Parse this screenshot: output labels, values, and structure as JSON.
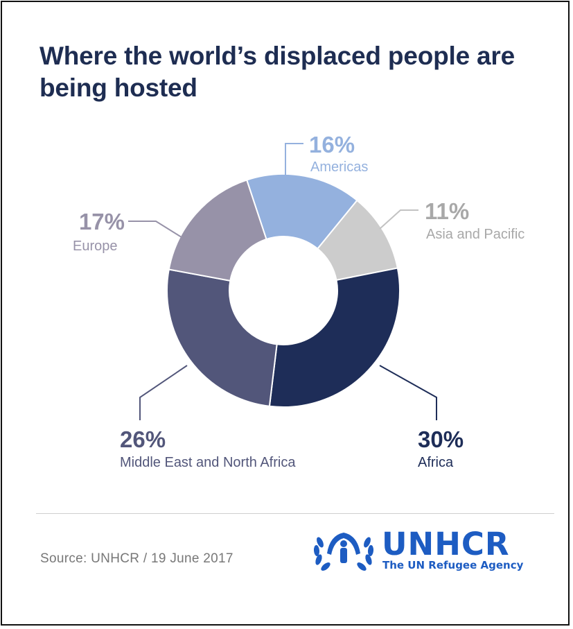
{
  "title": "Where the world’s displaced people are being hosted",
  "source": "Source: UNHCR / 19 June 2017",
  "logo": {
    "name": "UNHCR",
    "tagline": "The UN Refugee Agency"
  },
  "colors": {
    "title": "#1e2d52",
    "americas": "#94b1de",
    "asia": "#cccccc",
    "africa": "#1e2d58",
    "mena": "#52567a",
    "europe": "#9792a8",
    "logo": "#1d5cc2"
  },
  "chart_data": {
    "type": "pie",
    "donut": true,
    "title": "Where the world’s displaced people are being hosted",
    "slices": [
      {
        "name": "Americas",
        "label": "16%",
        "value": 16,
        "color": "#94b1de",
        "label_color": "#94b1de",
        "pct_color": "#94b1de"
      },
      {
        "name": "Asia and Pacific",
        "label": "11%",
        "value": 11,
        "color": "#cccccc",
        "label_color": "#a8a8a8",
        "pct_color": "#a8a8a8"
      },
      {
        "name": "Africa",
        "label": "30%",
        "value": 30,
        "color": "#1e2d58",
        "label_color": "#1e2d58",
        "pct_color": "#1e2d58"
      },
      {
        "name": "Middle East and North Africa",
        "label": "26%",
        "value": 26,
        "color": "#52567a",
        "label_color": "#52567a",
        "pct_color": "#52567a"
      },
      {
        "name": "Europe",
        "label": "17%",
        "value": 17,
        "color": "#9792a8",
        "label_color": "#9792a8",
        "pct_color": "#9792a8"
      }
    ]
  }
}
